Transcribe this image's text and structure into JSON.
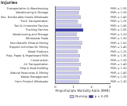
{
  "chart_data": {
    "type": "bar",
    "orientation": "horizontal",
    "stacked": true,
    "title": "Injuries",
    "x_label": "Proportionate Mortality Ratio (PMR)",
    "categories": [
      "Transportation & Warehousing",
      "Warehousing & Storage",
      "Misc. Nondurable Goods Wholesale",
      "Truck Transportation",
      "Taxi & Limousine Service",
      "Trucking Service",
      "Warehousing and Storage",
      "Wholesale Trade",
      "Non-Metallic Mineral Mining",
      "Support Activities for Mining",
      "Wood Products",
      "Pulp, Paper & Paperboard Mills",
      "Construction",
      "Air Transportation",
      "Ship & Boat Building",
      "Natural Resources & Mining",
      "Waste Management",
      "Farm Product Wholesale"
    ],
    "series": [
      {
        "name": "Nursing",
        "color": "#c8c8f0",
        "values": [
          1.35,
          1.3,
          1.4,
          1.25,
          1.45,
          null,
          1.2,
          1.3,
          1.5,
          1.4,
          1.25,
          1.35,
          1.3,
          1.4,
          1.3,
          1.45,
          1.35,
          1.3
        ]
      },
      {
        "name": "p < 0.05",
        "color": "#3a3aa8",
        "values": [
          null,
          null,
          null,
          null,
          null,
          1.55,
          null,
          null,
          null,
          null,
          null,
          null,
          null,
          null,
          null,
          null,
          null,
          null
        ]
      }
    ],
    "value_labels": [
      "PMR = 1.35",
      "PMR = 1.30",
      "PMR = 1.40",
      "PMR = 1.25",
      "PMR = 1.45",
      "PMR = 1.55",
      "PMR = 1.20",
      "PMR = 1.30",
      "PMR = 1.50",
      "PMR = 1.40",
      "PMR = 1.25",
      "PMR = 1.35",
      "PMR = 1.30",
      "PMR = 1.40",
      "PMR = 1.30",
      "PMR = 1.45",
      "PMR = 1.35",
      "PMR = 1.30"
    ],
    "xlim": [
      0,
      3
    ],
    "xticks": [
      0,
      1,
      2,
      3
    ],
    "grid": false,
    "legend": "bottom"
  }
}
